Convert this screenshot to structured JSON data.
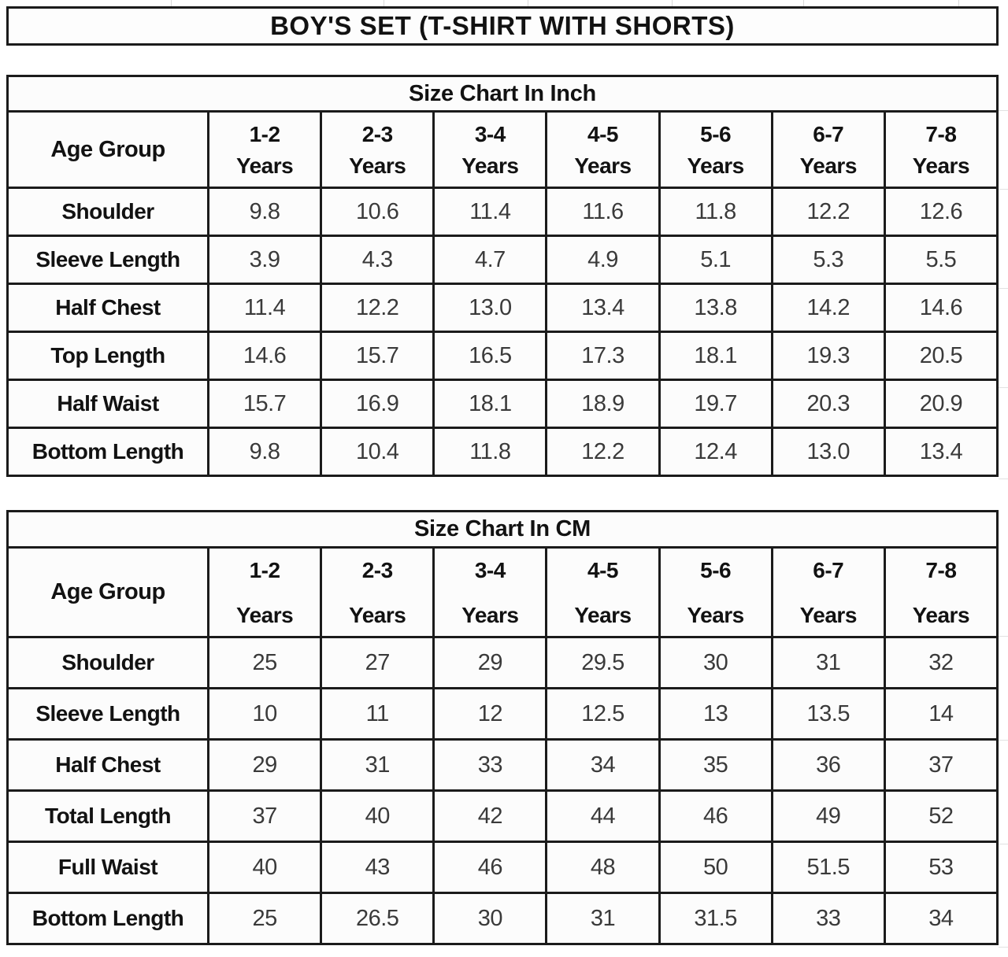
{
  "page": {
    "title": "BOY'S SET (T-SHIRT WITH SHORTS)"
  },
  "tables": [
    {
      "title": "Size Chart In Inch",
      "corner_label": "Age Group",
      "age_groups": [
        {
          "range": "1-2",
          "years": "Years"
        },
        {
          "range": "2-3",
          "years": "Years"
        },
        {
          "range": "3-4",
          "years": "Years"
        },
        {
          "range": "4-5",
          "years": "Years"
        },
        {
          "range": "5-6",
          "years": "Years"
        },
        {
          "range": "6-7",
          "years": "Years"
        },
        {
          "range": "7-8",
          "years": "Years"
        }
      ],
      "rows": [
        {
          "label": "Shoulder",
          "values": [
            "9.8",
            "10.6",
            "11.4",
            "11.6",
            "11.8",
            "12.2",
            "12.6"
          ]
        },
        {
          "label": "Sleeve Length",
          "values": [
            "3.9",
            "4.3",
            "4.7",
            "4.9",
            "5.1",
            "5.3",
            "5.5"
          ]
        },
        {
          "label": "Half Chest",
          "values": [
            "11.4",
            "12.2",
            "13.0",
            "13.4",
            "13.8",
            "14.2",
            "14.6"
          ]
        },
        {
          "label": "Top Length",
          "values": [
            "14.6",
            "15.7",
            "16.5",
            "17.3",
            "18.1",
            "19.3",
            "20.5"
          ]
        },
        {
          "label": "Half Waist",
          "values": [
            "15.7",
            "16.9",
            "18.1",
            "18.9",
            "19.7",
            "20.3",
            "20.9"
          ]
        },
        {
          "label": "Bottom Length",
          "values": [
            "9.8",
            "10.4",
            "11.8",
            "12.2",
            "12.4",
            "13.0",
            "13.4"
          ]
        }
      ]
    },
    {
      "title": "Size Chart In CM",
      "corner_label": "Age Group",
      "age_groups": [
        {
          "range": "1-2",
          "years": "Years"
        },
        {
          "range": "2-3",
          "years": "Years"
        },
        {
          "range": "3-4",
          "years": "Years"
        },
        {
          "range": "4-5",
          "years": "Years"
        },
        {
          "range": "5-6",
          "years": "Years"
        },
        {
          "range": "6-7",
          "years": "Years"
        },
        {
          "range": "7-8",
          "years": "Years"
        }
      ],
      "rows": [
        {
          "label": "Shoulder",
          "values": [
            "25",
            "27",
            "29",
            "29.5",
            "30",
            "31",
            "32"
          ]
        },
        {
          "label": "Sleeve Length",
          "values": [
            "10",
            "11",
            "12",
            "12.5",
            "13",
            "13.5",
            "14"
          ]
        },
        {
          "label": "Half Chest",
          "values": [
            "29",
            "31",
            "33",
            "34",
            "35",
            "36",
            "37"
          ]
        },
        {
          "label": "Total Length",
          "values": [
            "37",
            "40",
            "42",
            "44",
            "46",
            "49",
            "52"
          ]
        },
        {
          "label": "Full Waist",
          "values": [
            "40",
            "43",
            "46",
            "48",
            "50",
            "51.5",
            "53"
          ]
        },
        {
          "label": "Bottom Length",
          "values": [
            "25",
            "26.5",
            "30",
            "31",
            "31.5",
            "33",
            "34"
          ]
        }
      ]
    }
  ],
  "colors": {
    "border": "#1b1b1b",
    "label_text": "#121212",
    "value_text": "#3a3a3a",
    "cell_background": "#fcfcfc",
    "gridline": "#d9d9d9"
  }
}
